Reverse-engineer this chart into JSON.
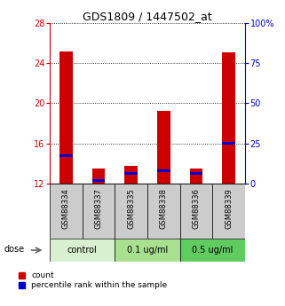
{
  "title": "GDS1809 / 1447502_at",
  "samples": [
    "GSM88334",
    "GSM88337",
    "GSM88335",
    "GSM88338",
    "GSM88336",
    "GSM88339"
  ],
  "groups": [
    {
      "label": "control",
      "color": "#d8f0d0"
    },
    {
      "label": "0.1 ug/ml",
      "color": "#a8e090"
    },
    {
      "label": "0.5 ug/ml",
      "color": "#60cc60"
    }
  ],
  "red_values": [
    25.2,
    13.5,
    13.8,
    19.2,
    13.5,
    25.1
  ],
  "blue_values": [
    14.8,
    12.3,
    13.0,
    13.3,
    13.0,
    16.0
  ],
  "ylim_left": [
    12,
    28
  ],
  "yticks_left": [
    12,
    16,
    20,
    24,
    28
  ],
  "ylim_right": [
    0,
    100
  ],
  "yticks_right": [
    0,
    25,
    50,
    75,
    100
  ],
  "ytick_labels_right": [
    "0",
    "25",
    "50",
    "75",
    "100%"
  ],
  "bar_width": 0.4,
  "blue_bar_height": 0.25,
  "left_color": "#cc0000",
  "right_color": "#0000cc",
  "sample_box_color": "#cccccc",
  "dose_label": "dose",
  "legend_count": "count",
  "legend_pct": "percentile rank within the sample"
}
